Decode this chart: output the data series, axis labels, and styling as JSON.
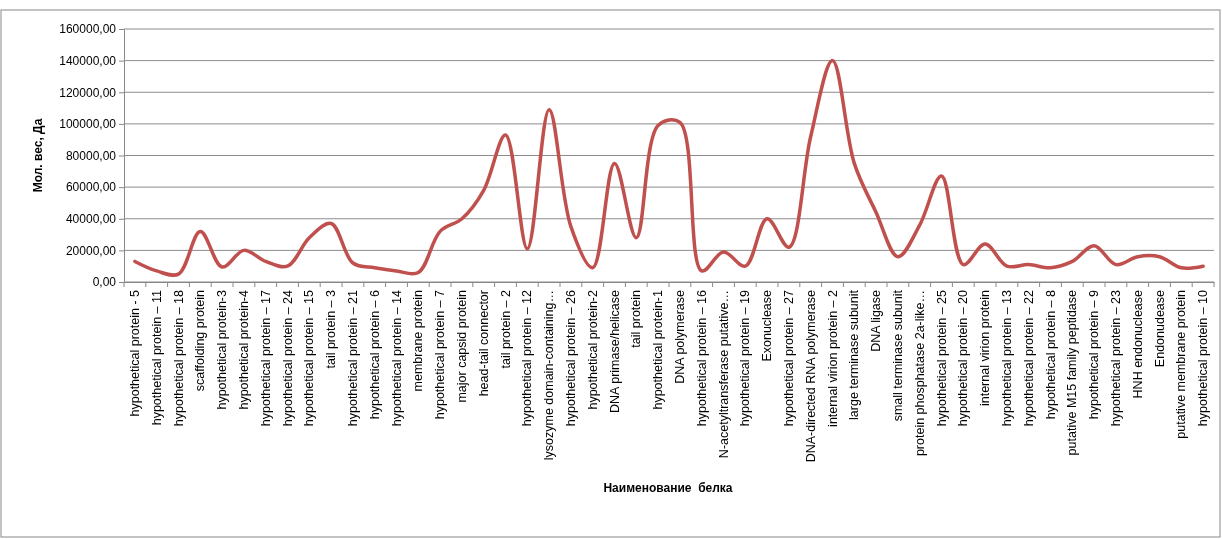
{
  "chart_data": {
    "type": "line",
    "xlabel": "Наименование  белка",
    "ylabel": "Мол. вес, Да",
    "categories": [
      "hypothetical protein - 5",
      "hypothetical protein – 11",
      "hypothetical protein – 18",
      "scaffolding protein",
      "hypothetical protein-3",
      "hypothetical protein-4",
      "hypothetical protein – 17",
      "hypothetical protein – 24",
      "hypothetical protein – 15",
      "tail protein – 3",
      "hypothetical protein – 21",
      "hypothetical protein – 6",
      "hypothetical protein – 14",
      "membrane protein",
      "hypothetical protein – 7",
      "major capsid protein",
      "head-tail connector",
      "tail protein – 2",
      "hypothetical protein – 12",
      "lysozyme domain-containing…",
      "hypothetical protein – 26",
      "hypothetical protein-2",
      "DNA primase/helicase",
      "tail protein",
      "hypothetical protein-1",
      "DNA polymerase",
      "hypothetical protein – 16",
      "N-acetyltransferase putative…",
      "hypothetical protein – 19",
      "Exonuclease",
      "hypothetical protein – 27",
      "DNA-directed RNA polymerase",
      "internal virion protein – 2",
      "large terminase subunit",
      "DNA ligase",
      "small terminase subunit",
      "protein phosphatase 2a-like…",
      "hypothetical protein – 25",
      "hypothetical protein – 20",
      "internal virion protein",
      "hypothetical protein – 13",
      "hypothetical protein – 22",
      "hypothetical protein – 8",
      "putative M15 family peptidase",
      "hypothetical protein – 9",
      "hypothetical protein – 23",
      "HNH endonuclease",
      "Endonudease",
      "putative membrane protein",
      "hypothetical protein – 10"
    ],
    "series": [
      {
        "color": "#c0504d",
        "values": [
          13000,
          7000,
          5000,
          32000,
          9500,
          20000,
          13000,
          10000,
          28000,
          37000,
          12000,
          9000,
          7000,
          6000,
          32000,
          40000,
          58000,
          93000,
          21000,
          109000,
          35000,
          9000,
          75000,
          28000,
          99000,
          101000,
          7000,
          19000,
          10000,
          40000,
          22000,
          92000,
          140000,
          75000,
          44000,
          16000,
          36000,
          67000,
          11000,
          24000,
          10000,
          11000,
          9000,
          13000,
          23000,
          11000,
          16000,
          16000,
          9000,
          10000
        ]
      }
    ],
    "ylim": [
      0,
      160000
    ],
    "yticks": [
      {
        "value": 0,
        "label": "0,00"
      },
      {
        "value": 20000,
        "label": "20000,00"
      },
      {
        "value": 40000,
        "label": "40000,00"
      },
      {
        "value": 60000,
        "label": "60000,00"
      },
      {
        "value": 80000,
        "label": "80000,00"
      },
      {
        "value": 100000,
        "label": "100000,00"
      },
      {
        "value": 120000,
        "label": "120000,00"
      },
      {
        "value": 140000,
        "label": "140000,00"
      },
      {
        "value": 160000,
        "label": "160000,00"
      }
    ],
    "grid": "y",
    "marker": "none",
    "line_style": "solid"
  }
}
